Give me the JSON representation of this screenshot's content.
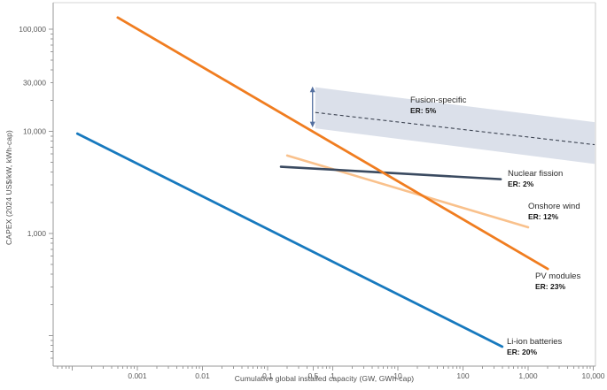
{
  "figure": {
    "y_axis": {
      "title": "CAPEX (2024 US$/kW, kWh-cap)",
      "ticks": [
        {
          "value": 100000,
          "label": "100,000"
        },
        {
          "value": 30000,
          "label": "30,000"
        },
        {
          "value": 10000,
          "label": "10,000"
        },
        {
          "value": 1000,
          "label": "1,000"
        }
      ]
    },
    "x_axis": {
      "title": "Cumulative global installed capacity (GW, GWh-cap)",
      "ticks": [
        {
          "value": 0.001,
          "label": "0.001"
        },
        {
          "value": 0.01,
          "label": "0.01"
        },
        {
          "value": 0.1,
          "label": "0.1"
        },
        {
          "value": 0.5,
          "label": "0.5"
        },
        {
          "value": 1,
          "label": "1"
        },
        {
          "value": 10,
          "label": "10"
        },
        {
          "value": 100,
          "label": "100"
        },
        {
          "value": 1000,
          "label": "1,000"
        },
        {
          "value": 10000,
          "label": "10,000"
        }
      ]
    }
  },
  "chart_data": {
    "type": "line",
    "title": "",
    "xlabel": "Cumulative global installed capacity (GW, GWh-cap)",
    "ylabel": "CAPEX (2024 US$/kW, kWh-cap)",
    "x_scale": "log",
    "y_scale": "log",
    "xlim": [
      5e-05,
      10800
    ],
    "ylim": [
      50,
      180000
    ],
    "grid": false,
    "series": [
      {
        "name": "Onshore wind",
        "er_label": "ER: 12%",
        "color": "#f9c18c",
        "width": 2.6,
        "points": [
          [
            0.2,
            5800
          ],
          [
            1000,
            1150
          ]
        ]
      },
      {
        "name": "Nuclear fission",
        "er_label": "ER: 2%",
        "color": "#3a4a60",
        "width": 2.6,
        "points": [
          [
            0.16,
            4500
          ],
          [
            380,
            3400
          ]
        ]
      },
      {
        "name": "Li-ion batteries",
        "er_label": "ER: 20%",
        "color": "#1779be",
        "width": 2.8,
        "points": [
          [
            0.00012,
            9500
          ],
          [
            400,
            78
          ]
        ]
      },
      {
        "name": "PV modules",
        "er_label": "ER: 23%",
        "color": "#f07d20",
        "width": 2.8,
        "points": [
          [
            0.0005,
            130000
          ],
          [
            2000,
            450
          ]
        ]
      }
    ],
    "fusion_band": {
      "name": "Fusion-specific",
      "er_label": "ER: 5%",
      "fill": "#dbe0ea",
      "top_edge": [
        [
          0.54,
          27000
        ],
        [
          10500,
          12300
        ]
      ],
      "bottom_edge": [
        [
          0.54,
          10700
        ],
        [
          10500,
          4800
        ]
      ],
      "center_line": {
        "style": "dashed",
        "color": "#3b4250",
        "points": [
          [
            0.54,
            15300
          ],
          [
            10500,
            7400
          ]
        ]
      },
      "range_arrow": {
        "x": 0.49,
        "from_value": 10900,
        "to_value": 27500,
        "color": "#5470a0"
      }
    }
  }
}
